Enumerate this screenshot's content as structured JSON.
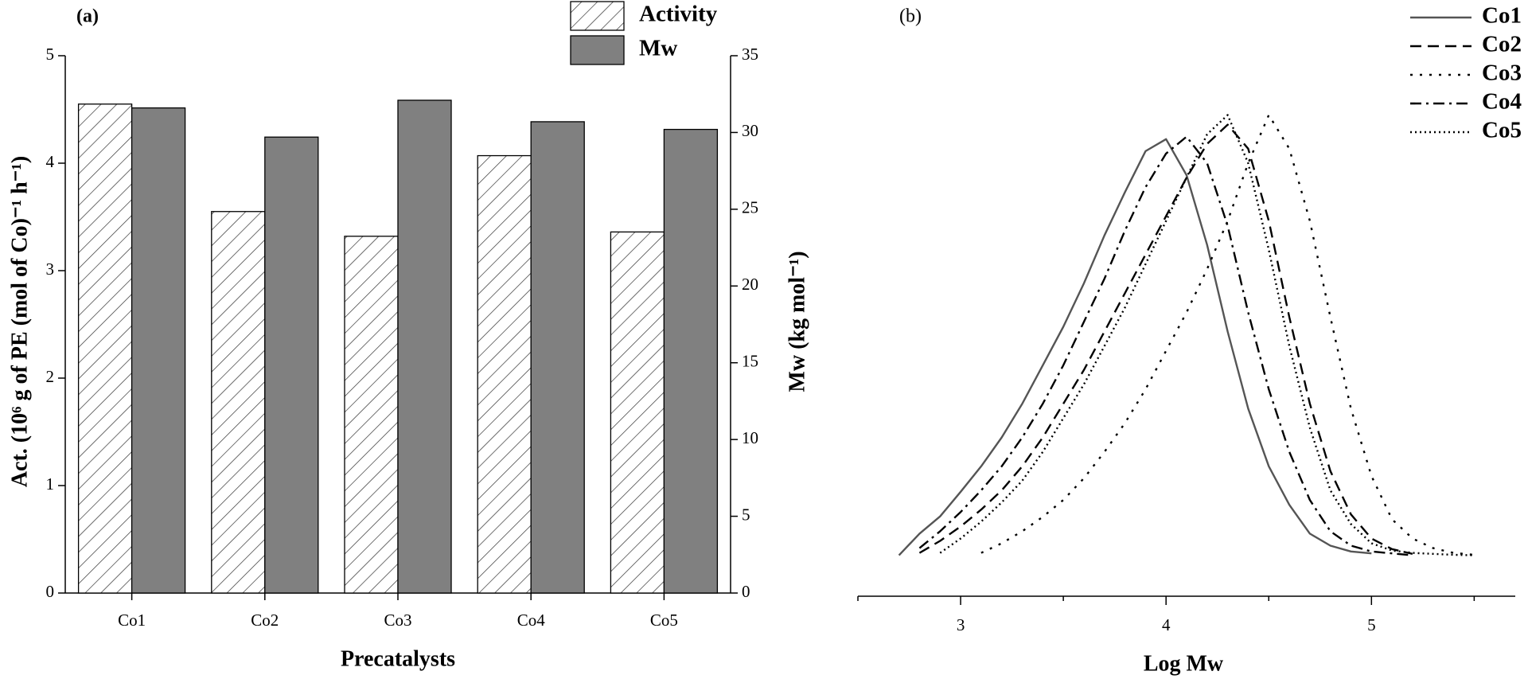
{
  "chart_data": [
    {
      "type": "bar",
      "panel_label": "(a)",
      "x_label": "Precatalysts",
      "y_label": "Act. (10⁶ g of PE (mol of Co)⁻¹ h⁻¹)",
      "y2_label": "Mw (kg mol⁻¹)",
      "categories": [
        "Co1",
        "Co2",
        "Co3",
        "Co4",
        "Co5"
      ],
      "series": [
        {
          "name": "Activity",
          "color": "#ffffff",
          "pattern": "hatch",
          "values": [
            4.55,
            3.55,
            3.32,
            4.07,
            3.36
          ]
        },
        {
          "name": "Mw",
          "color": "#808080",
          "axis": "y2",
          "values": [
            31.6,
            29.7,
            32.1,
            30.7,
            30.2
          ]
        }
      ],
      "ylim": [
        0,
        5
      ],
      "yticks": [
        0,
        1,
        2,
        3,
        4,
        5
      ],
      "y2lim": [
        0,
        35
      ],
      "y2ticks": [
        0,
        5,
        10,
        15,
        20,
        25,
        30,
        35
      ]
    },
    {
      "type": "line",
      "panel_label": "(b)",
      "x_label": "Log Mw",
      "x": [
        2.7,
        2.8,
        2.9,
        3.0,
        3.1,
        3.2,
        3.3,
        3.4,
        3.5,
        3.6,
        3.7,
        3.8,
        3.9,
        4.0,
        4.1,
        4.2,
        4.3,
        4.4,
        4.5,
        4.6,
        4.7,
        4.8,
        4.9,
        5.0,
        5.1,
        5.2,
        5.3,
        5.4,
        5.5
      ],
      "series": [
        {
          "name": "Co1",
          "color": "#555555",
          "line_style": "solid",
          "values": [
            0.085,
            0.13,
            0.166,
            0.217,
            0.27,
            0.33,
            0.4,
            0.48,
            0.56,
            0.65,
            0.75,
            0.84,
            0.925,
            0.95,
            0.875,
            0.73,
            0.55,
            0.39,
            0.27,
            0.19,
            0.13,
            0.105,
            0.093,
            0.089,
            null,
            null,
            null,
            null,
            null
          ]
        },
        {
          "name": "Co2",
          "color": "#000000",
          "line_style": "dashed",
          "values": [
            null,
            0.09,
            0.115,
            0.145,
            0.18,
            0.22,
            0.27,
            0.33,
            0.4,
            0.47,
            0.55,
            0.63,
            0.71,
            0.79,
            0.87,
            0.94,
            0.98,
            0.93,
            0.78,
            0.58,
            0.4,
            0.26,
            0.17,
            0.12,
            0.098,
            0.088,
            null,
            null,
            null
          ]
        },
        {
          "name": "Co3",
          "color": "#000000",
          "line_style": "sparse-dotted",
          "values": [
            null,
            null,
            null,
            null,
            0.09,
            0.11,
            0.135,
            0.165,
            0.2,
            0.245,
            0.3,
            0.36,
            0.43,
            0.51,
            0.59,
            0.68,
            0.78,
            0.9,
            1.0,
            0.93,
            0.78,
            0.58,
            0.39,
            0.25,
            0.16,
            0.12,
            0.1,
            0.09,
            0.086
          ]
        },
        {
          "name": "Co4",
          "color": "#000000",
          "line_style": "dash-dot",
          "values": [
            null,
            0.1,
            0.135,
            0.175,
            0.22,
            0.27,
            0.33,
            0.4,
            0.48,
            0.57,
            0.66,
            0.76,
            0.85,
            0.92,
            0.955,
            0.9,
            0.77,
            0.59,
            0.43,
            0.3,
            0.2,
            0.135,
            0.105,
            0.093,
            0.089,
            0.085,
            null,
            null,
            null
          ]
        },
        {
          "name": "Co5",
          "color": "#000000",
          "line_style": "dotted",
          "values": [
            null,
            null,
            0.09,
            0.12,
            0.155,
            0.195,
            0.24,
            0.3,
            0.37,
            0.44,
            0.52,
            0.6,
            0.69,
            0.78,
            0.87,
            0.96,
            1.0,
            0.9,
            0.72,
            0.52,
            0.35,
            0.22,
            0.15,
            0.11,
            0.095,
            0.09,
            0.088,
            0.086,
            0.085
          ]
        }
      ],
      "xlim": [
        2.5,
        5.7
      ],
      "xticks": [
        3,
        4,
        5
      ],
      "minor_xticks": [
        2.5,
        3.5,
        4.5,
        5.5
      ],
      "ylim": [
        0,
        1.12
      ]
    }
  ]
}
